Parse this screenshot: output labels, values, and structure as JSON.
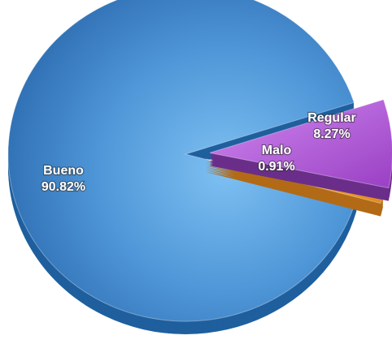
{
  "chart_data": {
    "type": "pie",
    "title": "",
    "slices": [
      {
        "label": "Bueno",
        "value": 90.82,
        "value_label": "90.82%",
        "color": "#4f97d8",
        "dark": "#1f5f9e",
        "exploded": false
      },
      {
        "label": "Regular",
        "value": 8.27,
        "value_label": "8.27%",
        "color": "#b35ad8",
        "dark": "#6a2e8a",
        "exploded": true
      },
      {
        "label": "Malo",
        "value": 0.91,
        "value_label": "0.91%",
        "color": "#f2a43a",
        "dark": "#b26a16",
        "exploded": true
      }
    ],
    "legend": "none",
    "style": "3d-exploded"
  }
}
